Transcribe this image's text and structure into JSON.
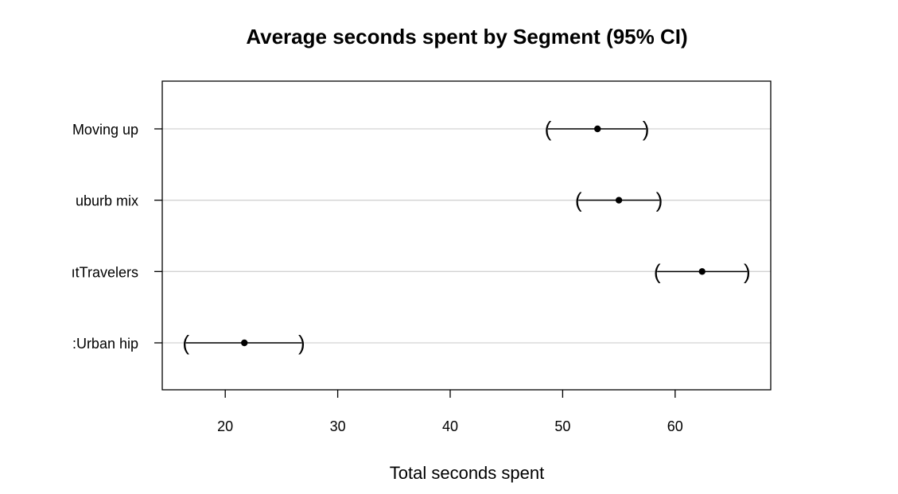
{
  "chart_data": {
    "type": "dot-interval",
    "title": "Average seconds spent by Segment (95% CI)",
    "xlabel": "Total seconds spent",
    "ylabel": "",
    "xlim": [
      14.4,
      68.5
    ],
    "xticks": [
      20,
      30,
      40,
      50,
      60
    ],
    "grid": "horizontal",
    "categories": [
      ":Urban hip",
      "ıtTravelers",
      "uburb mix",
      "Moving up"
    ],
    "category_display_labels": [
      ":Urban hip",
      "ıtTravelers",
      "uburb mix",
      "Moving up"
    ],
    "points": [
      {
        "category": ":Urban hip",
        "mean": 21.7,
        "lower": 16.5,
        "upper": 26.8
      },
      {
        "category": "ıtTravelers",
        "mean": 62.4,
        "lower": 58.4,
        "upper": 66.4
      },
      {
        "category": "uburb mix",
        "mean": 55.0,
        "lower": 51.4,
        "upper": 58.6
      },
      {
        "category": "Moving up",
        "mean": 53.1,
        "lower": 48.7,
        "upper": 57.4
      }
    ],
    "colors": {
      "point": "#000000",
      "line": "#000000",
      "grid": "#d3d3d3",
      "frame": "#000000"
    }
  }
}
